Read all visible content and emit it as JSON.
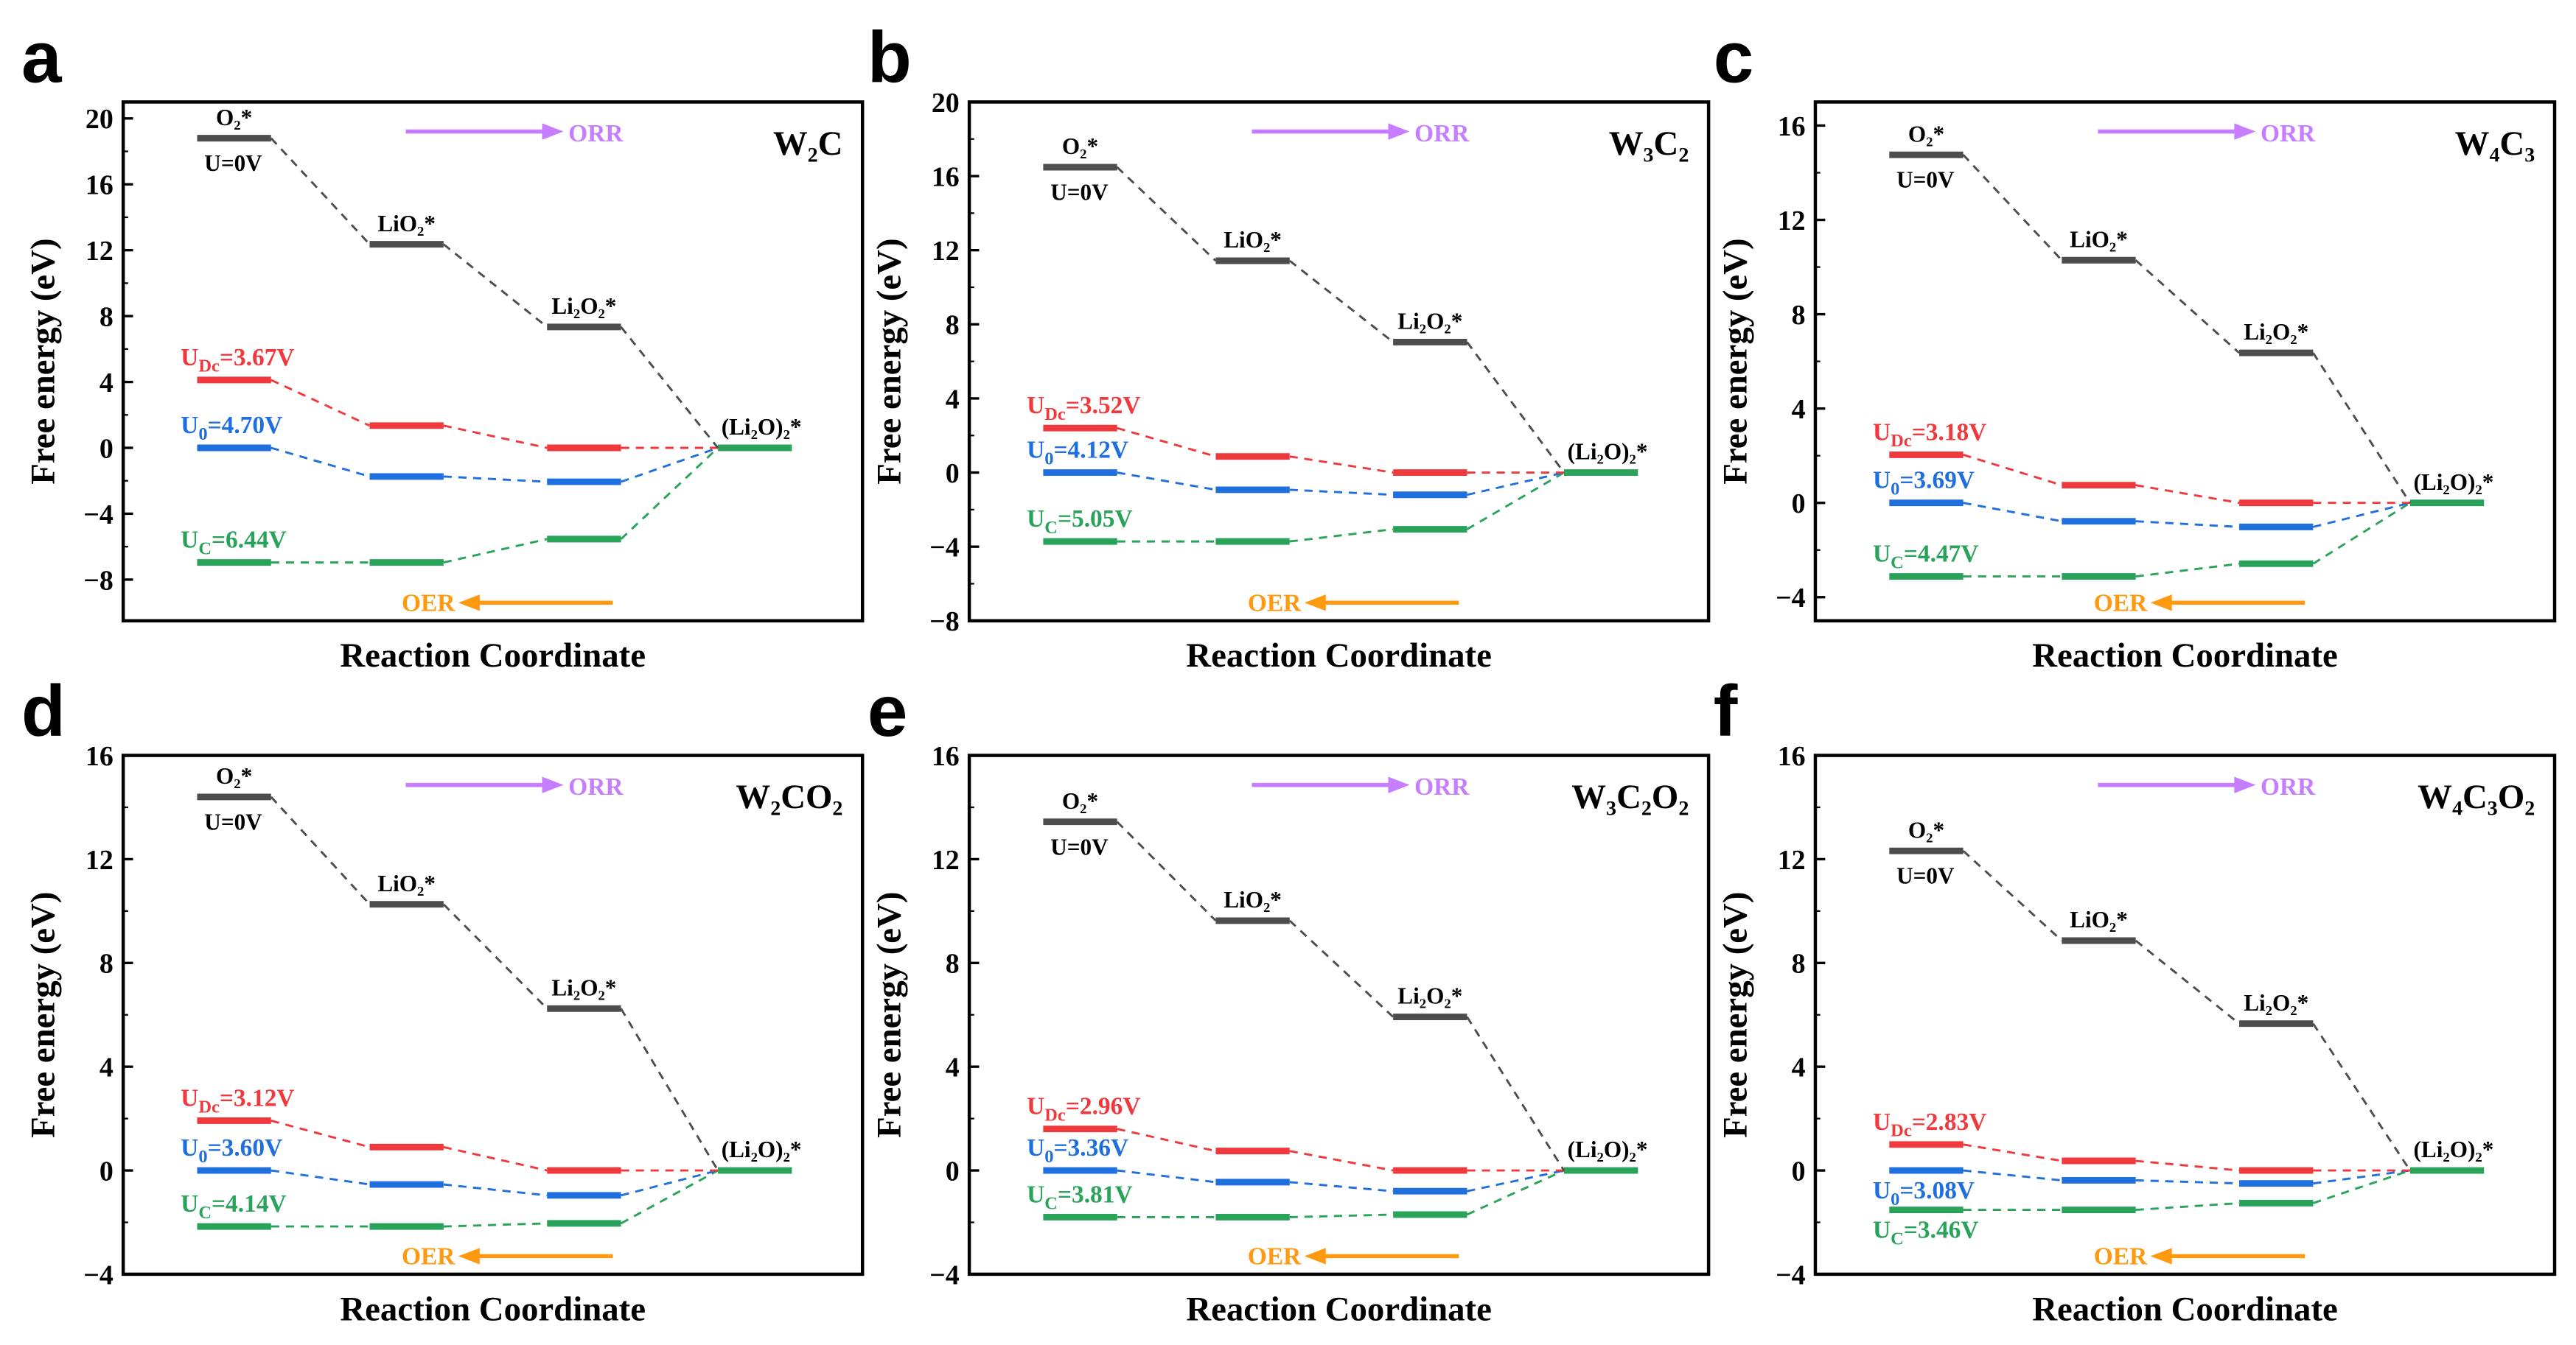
{
  "chart_data": [
    {
      "panel": "a",
      "type": "line",
      "title": "W₂C",
      "ylim": [
        -10.5,
        21
      ],
      "yticks": [
        -8,
        -4,
        0,
        4,
        8,
        12,
        16,
        20
      ],
      "xlabel": "Reaction Coordinate",
      "ylabel": "Free energy (eV)",
      "steps": [
        "O₂*",
        "LiO₂*",
        "Li₂O₂*",
        "(Li₂O)₂*"
      ],
      "series": [
        {
          "name": "U=0V",
          "sub": "",
          "potential": 0,
          "color": "#4d4d4d",
          "values": [
            18.8,
            12.36,
            7.34,
            0
          ]
        },
        {
          "name": "U",
          "sub": "Dc",
          "potential": 3.67,
          "label": "=3.67V",
          "color": "#f0393d",
          "values": [
            4.12,
            1.35,
            0,
            0
          ]
        },
        {
          "name": "U",
          "sub": "0",
          "potential": 4.7,
          "label": "=4.70V",
          "color": "#1f6fde",
          "values": [
            0,
            -1.74,
            -2.06,
            0
          ]
        },
        {
          "name": "U",
          "sub": "C",
          "potential": 6.44,
          "label": "=6.44V",
          "color": "#2aa35a",
          "values": [
            -6.96,
            -6.96,
            -5.54,
            0
          ]
        }
      ]
    },
    {
      "panel": "b",
      "type": "line",
      "title": "W₃C₂",
      "ylim": [
        -8,
        20
      ],
      "yticks": [
        -8,
        -4,
        0,
        4,
        8,
        12,
        16,
        20
      ],
      "xlabel": "Reaction Coordinate",
      "ylabel": "Free energy (eV)",
      "steps": [
        "O₂*",
        "LiO₂*",
        "Li₂O₂*",
        "(Li₂O)₂*"
      ],
      "series": [
        {
          "name": "U=0V",
          "sub": "",
          "potential": 0,
          "color": "#4d4d4d",
          "values": [
            16.48,
            11.43,
            7.04,
            0
          ]
        },
        {
          "name": "U",
          "sub": "Dc",
          "potential": 3.52,
          "label": "=3.52V",
          "color": "#f0393d",
          "values": [
            2.4,
            0.87,
            0,
            0
          ]
        },
        {
          "name": "U",
          "sub": "0",
          "potential": 4.12,
          "label": "=4.12V",
          "color": "#1f6fde",
          "values": [
            0,
            -0.93,
            -1.2,
            0
          ]
        },
        {
          "name": "U",
          "sub": "C",
          "potential": 5.05,
          "label": "=5.05V",
          "color": "#2aa35a",
          "values": [
            -3.72,
            -3.72,
            -3.06,
            0
          ]
        }
      ]
    },
    {
      "panel": "c",
      "type": "line",
      "title": "W₄C₃",
      "ylim": [
        -5,
        17
      ],
      "yticks": [
        -4,
        0,
        4,
        8,
        12,
        16
      ],
      "xlabel": "Reaction Coordinate",
      "ylabel": "Free energy (eV)",
      "steps": [
        "O₂*",
        "LiO₂*",
        "Li₂O₂*",
        "(Li₂O)₂*"
      ],
      "series": [
        {
          "name": "U=0V",
          "sub": "",
          "potential": 0,
          "color": "#4d4d4d",
          "values": [
            14.76,
            10.29,
            6.36,
            0
          ]
        },
        {
          "name": "U",
          "sub": "Dc",
          "potential": 3.18,
          "label": "=3.18V",
          "color": "#f0393d",
          "values": [
            2.04,
            0.75,
            0,
            0
          ]
        },
        {
          "name": "U",
          "sub": "0",
          "potential": 3.69,
          "label": "=3.69V",
          "color": "#1f6fde",
          "values": [
            0,
            -0.78,
            -1.02,
            0
          ]
        },
        {
          "name": "U",
          "sub": "C",
          "potential": 4.47,
          "label": "=4.47V",
          "color": "#2aa35a",
          "values": [
            -3.12,
            -3.12,
            -2.58,
            0
          ]
        }
      ]
    },
    {
      "panel": "d",
      "type": "line",
      "title": "W₂CO₂",
      "ylim": [
        -4,
        16
      ],
      "yticks": [
        -4,
        0,
        4,
        8,
        12,
        16
      ],
      "xlabel": "Reaction Coordinate",
      "ylabel": "Free energy (eV)",
      "steps": [
        "O₂*",
        "LiO₂*",
        "Li₂O₂*",
        "(Li₂O)₂*"
      ],
      "series": [
        {
          "name": "U=0V",
          "sub": "",
          "potential": 0,
          "color": "#4d4d4d",
          "values": [
            14.4,
            10.26,
            6.24,
            0
          ]
        },
        {
          "name": "U",
          "sub": "Dc",
          "potential": 3.12,
          "label": "=3.12V",
          "color": "#f0393d",
          "values": [
            1.92,
            0.9,
            0,
            0
          ]
        },
        {
          "name": "U",
          "sub": "0",
          "potential": 3.6,
          "label": "=3.60V",
          "color": "#1f6fde",
          "values": [
            0,
            -0.54,
            -0.96,
            0
          ]
        },
        {
          "name": "U",
          "sub": "C",
          "potential": 4.14,
          "label": "=4.14V",
          "color": "#2aa35a",
          "values": [
            -2.16,
            -2.16,
            -2.04,
            0
          ]
        }
      ]
    },
    {
      "panel": "e",
      "type": "line",
      "title": "W₃C₂O₂",
      "ylim": [
        -4,
        16
      ],
      "yticks": [
        -4,
        0,
        4,
        8,
        12,
        16
      ],
      "xlabel": "Reaction Coordinate",
      "ylabel": "Free energy (eV)",
      "steps": [
        "O₂*",
        "LiO₂*",
        "Li₂O₂*",
        "(Li₂O)₂*"
      ],
      "series": [
        {
          "name": "U=0V",
          "sub": "",
          "potential": 0,
          "color": "#4d4d4d",
          "values": [
            13.44,
            9.63,
            5.92,
            0
          ]
        },
        {
          "name": "U",
          "sub": "Dc",
          "potential": 2.96,
          "label": "=2.96V",
          "color": "#f0393d",
          "values": [
            1.6,
            0.75,
            0,
            0
          ]
        },
        {
          "name": "U",
          "sub": "0",
          "potential": 3.36,
          "label": "=3.36V",
          "color": "#1f6fde",
          "values": [
            0,
            -0.45,
            -0.8,
            0
          ]
        },
        {
          "name": "U",
          "sub": "C",
          "potential": 3.81,
          "label": "=3.81V",
          "color": "#2aa35a",
          "values": [
            -1.8,
            -1.8,
            -1.7,
            0
          ]
        }
      ]
    },
    {
      "panel": "f",
      "type": "line",
      "title": "W₄C₃O₂",
      "ylim": [
        -4,
        16
      ],
      "yticks": [
        -4,
        0,
        4,
        8,
        12,
        16
      ],
      "xlabel": "Reaction Coordinate",
      "ylabel": "Free energy (eV)",
      "steps": [
        "O₂*",
        "LiO₂*",
        "Li₂O₂*",
        "(Li₂O)₂*"
      ],
      "series": [
        {
          "name": "U=0V",
          "sub": "",
          "potential": 0,
          "color": "#4d4d4d",
          "values": [
            12.32,
            8.86,
            5.66,
            0
          ]
        },
        {
          "name": "U",
          "sub": "Dc",
          "potential": 2.83,
          "label": "=2.83V",
          "color": "#f0393d",
          "values": [
            1.0,
            0.37,
            0,
            0
          ]
        },
        {
          "name": "U",
          "sub": "0",
          "potential": 3.08,
          "label": "=3.08V",
          "color": "#1f6fde",
          "values": [
            0,
            -0.38,
            -0.5,
            0
          ]
        },
        {
          "name": "U",
          "sub": "C",
          "potential": 3.46,
          "label": "=3.46V",
          "color": "#2aa35a",
          "values": [
            -1.52,
            -1.52,
            -1.26,
            0
          ]
        }
      ]
    }
  ],
  "arrows": {
    "orr": "ORR",
    "oer": "OER",
    "orr_color": "#c77dff",
    "oer_color": "#ff9a10"
  }
}
